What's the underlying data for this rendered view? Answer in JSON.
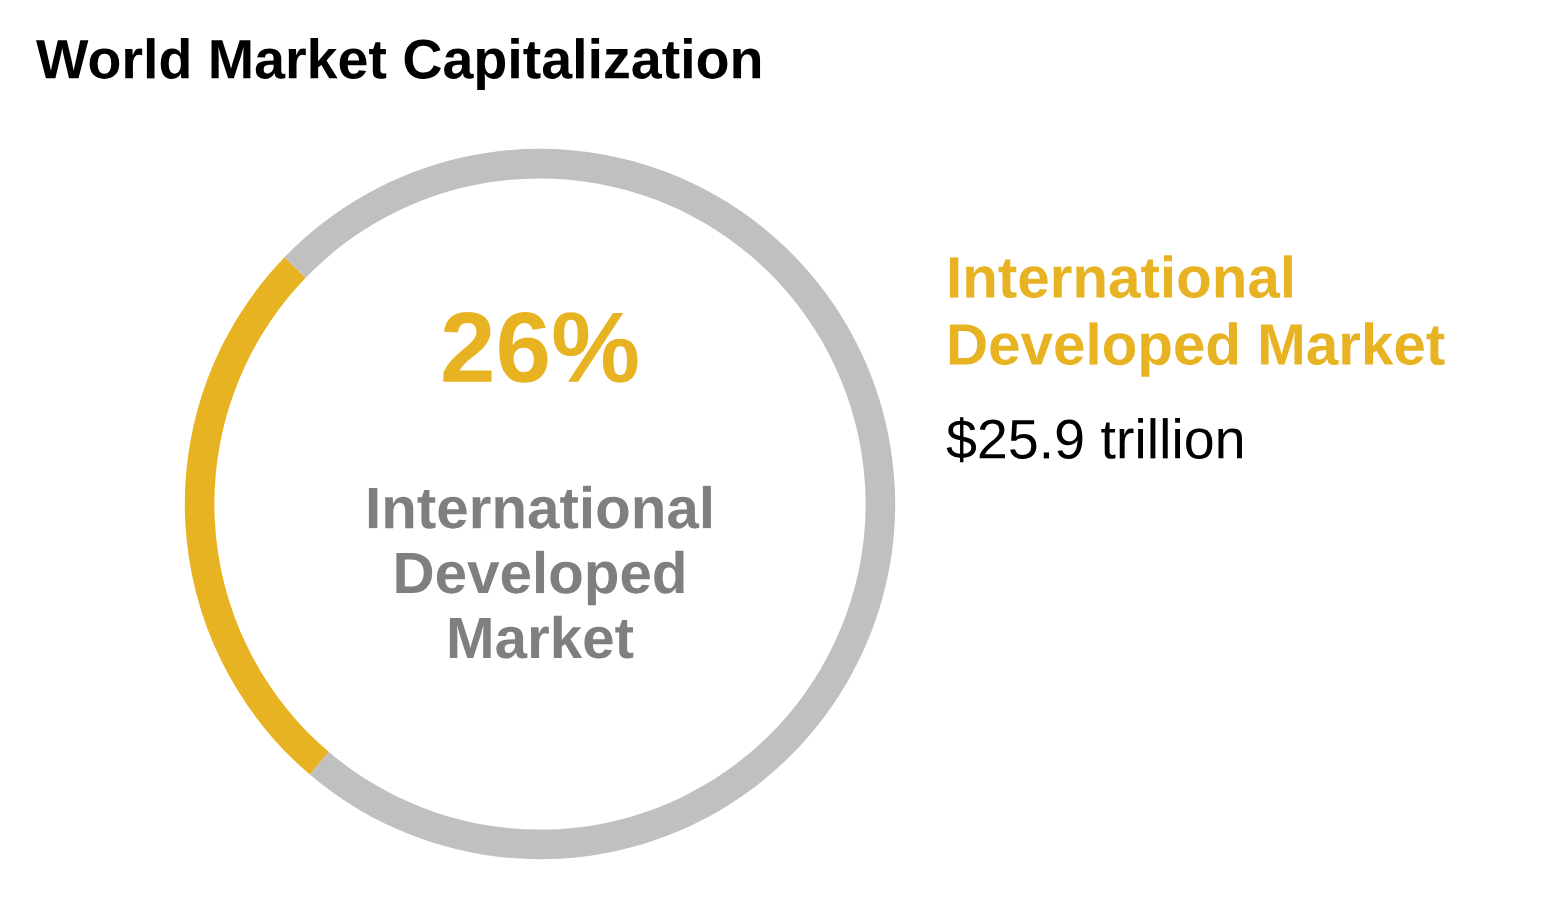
{
  "chart_data": {
    "type": "donut",
    "title": "World Market Capitalization",
    "categories": [
      null,
      null
    ],
    "values": [
      26,
      74
    ],
    "colors": [
      "#e8b323",
      "#c0c0c0"
    ],
    "annotations": [
      "26%",
      "International Developed Market",
      "International Developed Market",
      "$25.9 trillion"
    ]
  }
}
